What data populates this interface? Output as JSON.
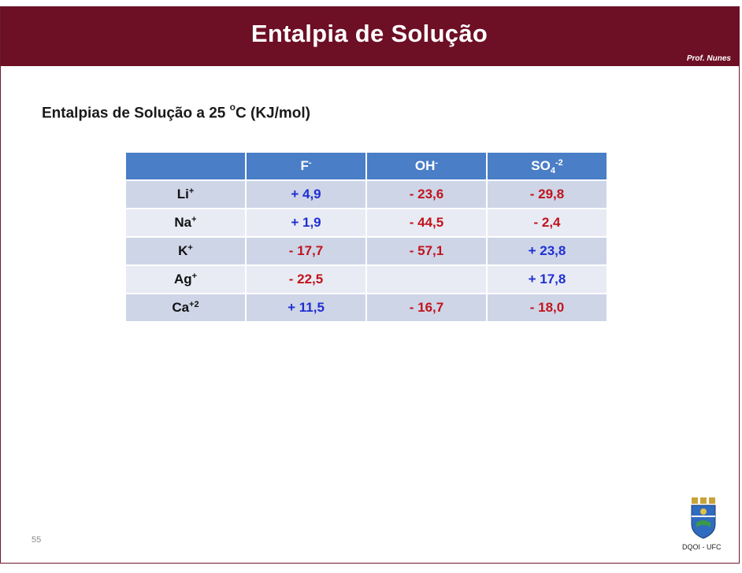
{
  "slide": {
    "title": "Entalpia de Solução",
    "author": "Prof. Nunes",
    "subtitle_pre": "Entalpias de Solução a 25 ",
    "subtitle_degree": "o",
    "subtitle_post": "C (KJ/mol)",
    "page_number": "55",
    "department": "DQOI - UFC",
    "logo_icon": "university-crest-icon"
  },
  "table": {
    "headers": [
      {
        "base": "",
        "sub": "",
        "sup": ""
      },
      {
        "base": "F",
        "sub": "",
        "sup": "-"
      },
      {
        "base": "OH",
        "sub": "",
        "sup": "-"
      },
      {
        "base": "SO",
        "sub": "4",
        "sup": "-2"
      }
    ],
    "rows": [
      {
        "cation": "Li",
        "charge": "+",
        "values": [
          "+ 4,9",
          "- 23,6",
          "- 29,8"
        ]
      },
      {
        "cation": "Na",
        "charge": "+",
        "values": [
          "+ 1,9",
          "- 44,5",
          "- 2,4"
        ]
      },
      {
        "cation": "K",
        "charge": "+",
        "values": [
          "- 17,7",
          "- 57,1",
          "+ 23,8"
        ]
      },
      {
        "cation": "Ag",
        "charge": "+",
        "values": [
          "- 22,5",
          "",
          "+ 17,8"
        ]
      },
      {
        "cation": "Ca",
        "charge": "+2",
        "values": [
          "+ 11,5",
          "- 16,7",
          "- 18,0"
        ]
      }
    ]
  },
  "colors": {
    "header_bar": "#6d0f25",
    "table_header": "#4a7ec7",
    "positive_value": "#1f2fd0",
    "negative_value": "#c0141c"
  }
}
